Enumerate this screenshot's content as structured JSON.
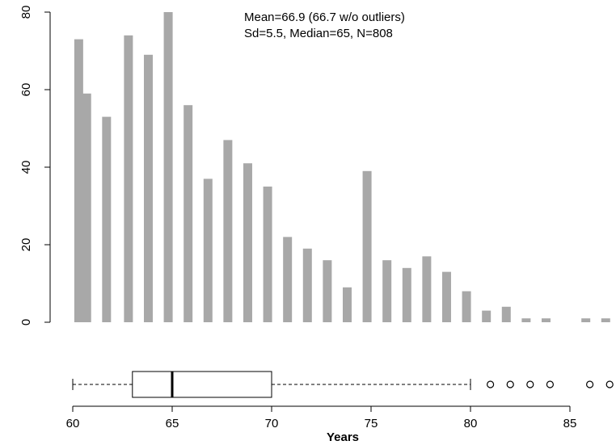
{
  "chart_data": {
    "type": "bar",
    "colors": {
      "bar": "#a8a8a8",
      "axis": "#000000",
      "box": "#000000"
    },
    "bins": [
      {
        "x": 60.3,
        "value": 73
      },
      {
        "x": 60.7,
        "value": 59
      },
      {
        "x": 61.7,
        "value": 53
      },
      {
        "x": 62.8,
        "value": 74
      },
      {
        "x": 63.8,
        "value": 69
      },
      {
        "x": 64.8,
        "value": 80
      },
      {
        "x": 65.8,
        "value": 56
      },
      {
        "x": 66.8,
        "value": 37
      },
      {
        "x": 67.8,
        "value": 47
      },
      {
        "x": 68.8,
        "value": 41
      },
      {
        "x": 69.8,
        "value": 35
      },
      {
        "x": 70.8,
        "value": 22
      },
      {
        "x": 71.8,
        "value": 19
      },
      {
        "x": 72.8,
        "value": 16
      },
      {
        "x": 73.8,
        "value": 9
      },
      {
        "x": 74.8,
        "value": 39
      },
      {
        "x": 75.8,
        "value": 16
      },
      {
        "x": 76.8,
        "value": 14
      },
      {
        "x": 77.8,
        "value": 17
      },
      {
        "x": 78.8,
        "value": 13
      },
      {
        "x": 79.8,
        "value": 8
      },
      {
        "x": 80.8,
        "value": 3
      },
      {
        "x": 81.8,
        "value": 4
      },
      {
        "x": 82.8,
        "value": 1
      },
      {
        "x": 83.8,
        "value": 1
      },
      {
        "x": 85.8,
        "value": 1
      },
      {
        "x": 86.8,
        "value": 1
      }
    ],
    "xlim": [
      60,
      87
    ],
    "ylim": [
      0,
      80
    ],
    "xticks": [
      "60",
      "65",
      "70",
      "75",
      "80",
      "85"
    ],
    "yticks": [
      "0",
      "20",
      "40",
      "60",
      "80"
    ],
    "xlabel": "Years",
    "ylabel": "",
    "grid": false,
    "stats_lines": [
      "Mean=66.9 (66.7 w/o outliers)",
      "Sd=5.5, Median=65, N=808"
    ],
    "boxplot": {
      "whisker_low": 60,
      "q1": 63,
      "median": 65,
      "q3": 70,
      "whisker_high": 80,
      "outliers": [
        81,
        82,
        83,
        84,
        86,
        87
      ]
    }
  }
}
